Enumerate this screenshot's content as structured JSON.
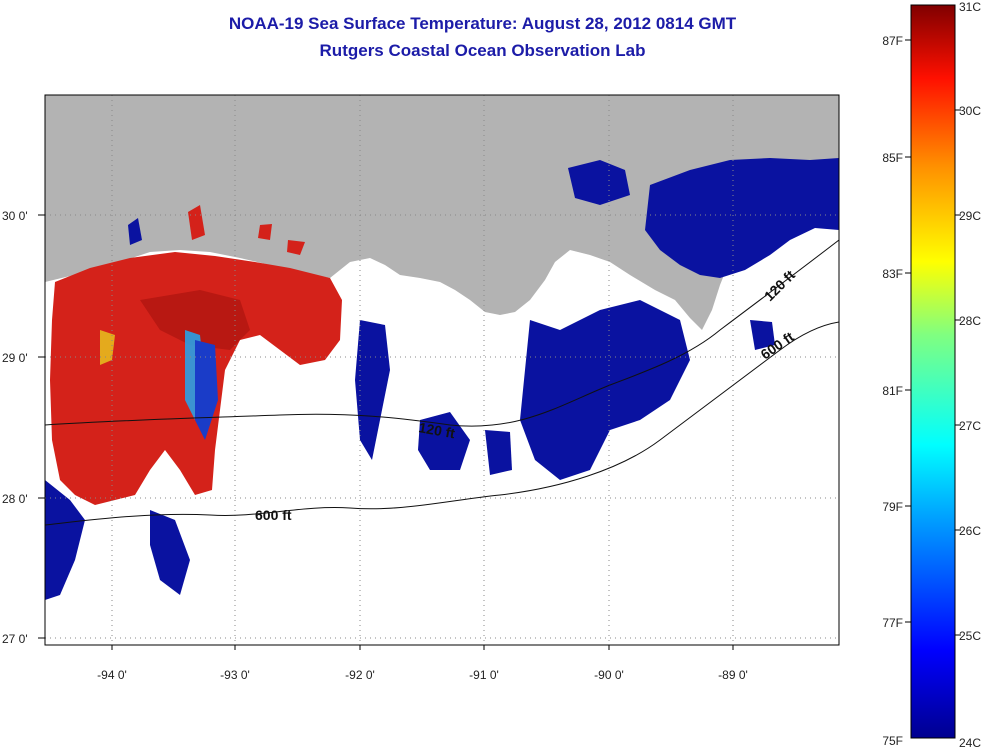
{
  "header": {
    "title": "NOAA-19 Sea Surface Temperature:  August 28, 2012 0814 GMT",
    "subtitle": "Rutgers Coastal Ocean Observation Lab"
  },
  "map": {
    "x_ticks": [
      "-94 0'",
      "-93 0'",
      "-92 0'",
      "-91 0'",
      "-90 0'",
      "-89 0'"
    ],
    "y_ticks": [
      "30 0'",
      "29 0'",
      "28 0'",
      "27 0'"
    ],
    "contours": [
      {
        "label": "600 ft"
      },
      {
        "label": "120 ft"
      },
      {
        "label": "120 ft"
      },
      {
        "label": "600 ft"
      }
    ],
    "colors": {
      "land": "#b3b3b3",
      "cloud_mask": "#ffffff",
      "warm": "#d4221a",
      "cool": "#0a12a0"
    }
  },
  "colorbar": {
    "fahrenheit_labels": [
      "87F",
      "85F",
      "83F",
      "81F",
      "79F",
      "77F",
      "75F"
    ],
    "celsius_labels": [
      "31C",
      "30C",
      "29C",
      "28C",
      "27C",
      "26C",
      "25C",
      "24C"
    ]
  }
}
